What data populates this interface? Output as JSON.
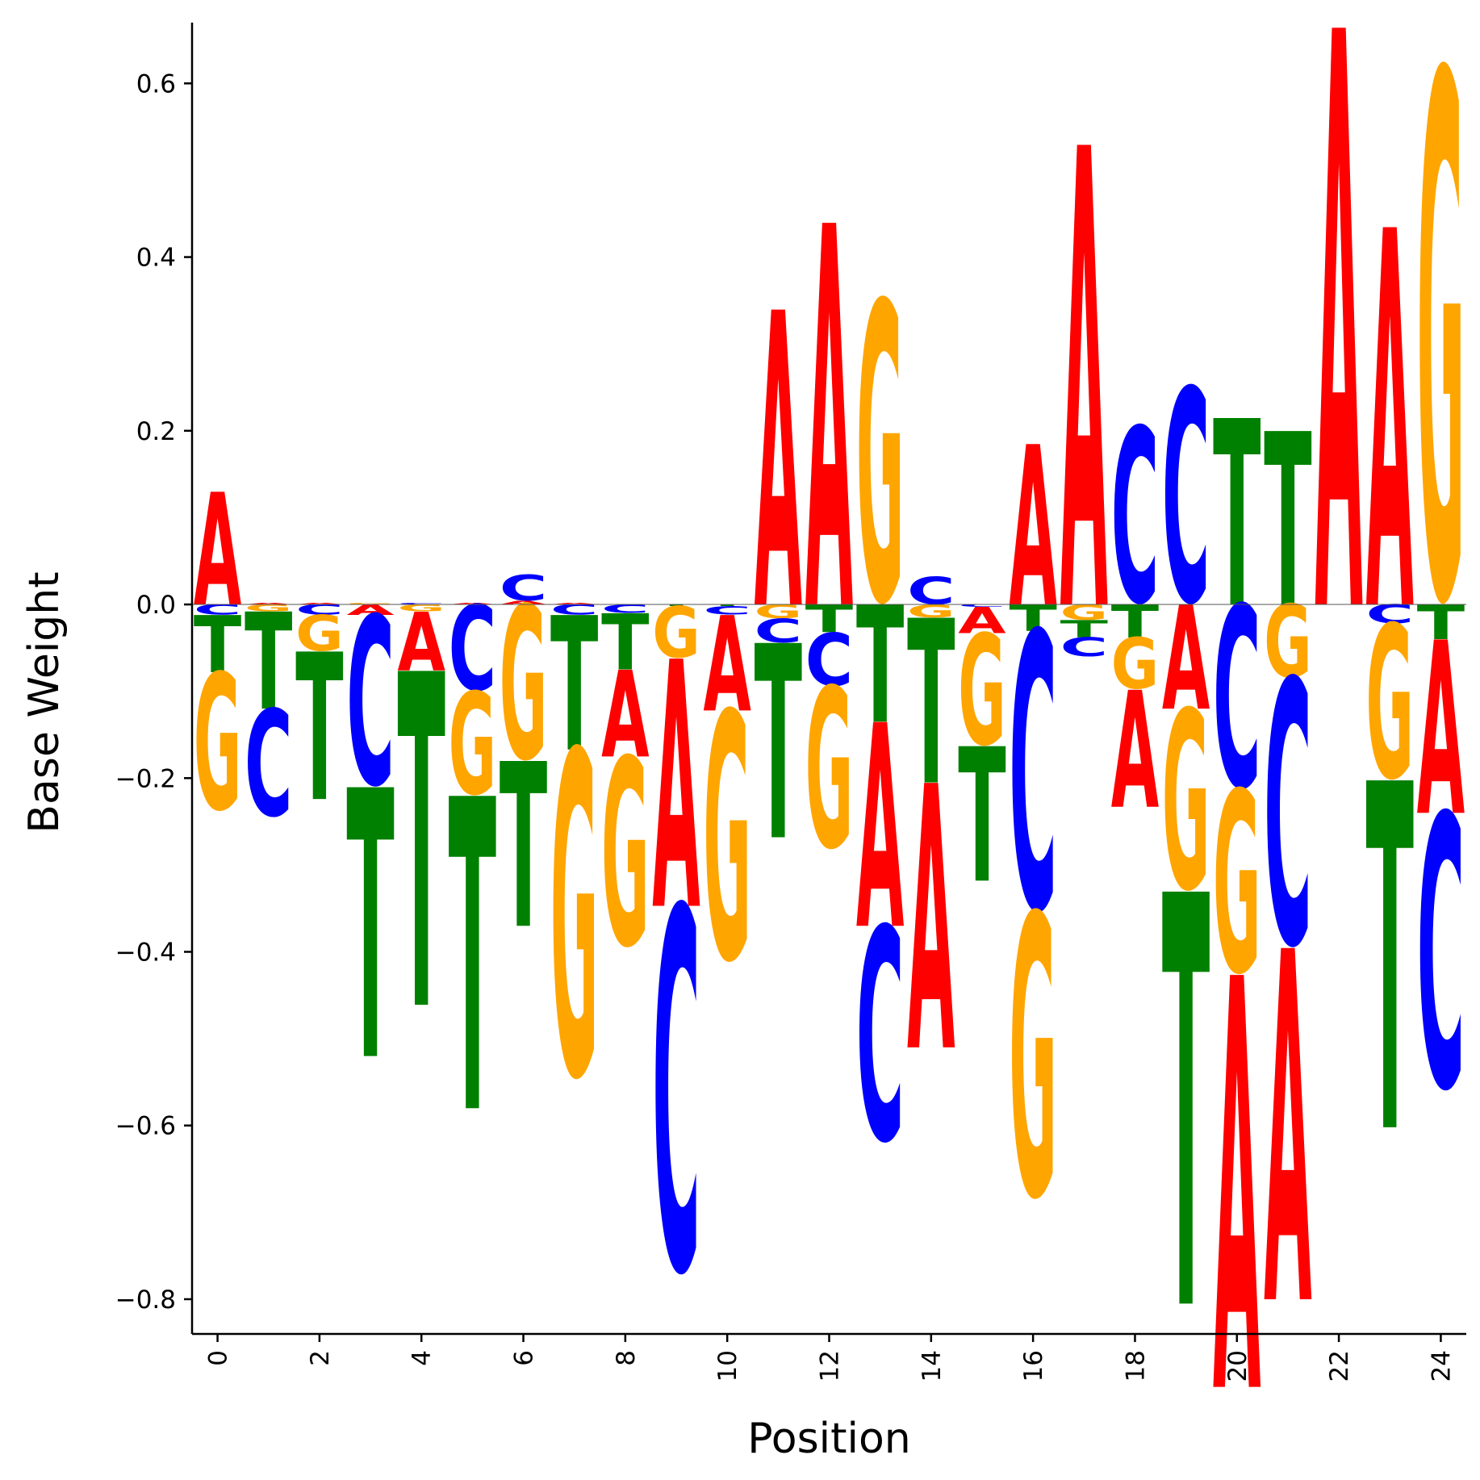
{
  "chart_data": {
    "type": "sequence-logo",
    "title": "",
    "xlabel": "Position",
    "ylabel": "Base Weight",
    "xlim": [
      -0.5,
      24.5
    ],
    "ylim": [
      -0.84,
      0.67
    ],
    "x_ticks": [
      0,
      2,
      4,
      6,
      8,
      10,
      12,
      14,
      16,
      18,
      20,
      22,
      24
    ],
    "x_tick_labels": [
      "0",
      "2",
      "4",
      "6",
      "8",
      "10",
      "12",
      "14",
      "16",
      "18",
      "20",
      "22",
      "24"
    ],
    "y_ticks": [
      -0.8,
      -0.6,
      -0.4,
      -0.2,
      0.0,
      0.2,
      0.4,
      0.6
    ],
    "y_tick_labels": [
      "−0.8",
      "−0.6",
      "−0.4",
      "−0.2",
      "0.0",
      "0.2",
      "0.4",
      "0.6"
    ],
    "base_colors": {
      "A": "#ff0000",
      "C": "#0000ff",
      "G": "#ffa500",
      "T": "#008000"
    },
    "grid": false,
    "positions": [
      {
        "pos": 0,
        "A": 0.13,
        "C": -0.012,
        "G": -0.16,
        "T": -0.066
      },
      {
        "pos": 1,
        "A": 0.002,
        "C": -0.125,
        "G": -0.008,
        "T": -0.112
      },
      {
        "pos": 2,
        "A": 0.002,
        "C": -0.012,
        "G": -0.042,
        "T": -0.17
      },
      {
        "pos": 3,
        "A": -0.012,
        "C": -0.198,
        "G": 0.002,
        "T": -0.31
      },
      {
        "pos": 4,
        "A": -0.068,
        "C": 0.002,
        "G": -0.008,
        "T": -0.385
      },
      {
        "pos": 5,
        "A": 0.002,
        "C": -0.1,
        "G": -0.12,
        "T": -0.36
      },
      {
        "pos": 6,
        "A": 0.004,
        "C": 0.03,
        "G": -0.18,
        "T": -0.19
      },
      {
        "pos": 7,
        "A": 0.002,
        "C": -0.012,
        "G": -0.38,
        "T": -0.155
      },
      {
        "pos": 8,
        "A": -0.1,
        "C": -0.01,
        "G": -0.22,
        "T": -0.065
      },
      {
        "pos": 9,
        "A": -0.285,
        "C": -0.425,
        "G": -0.06,
        "T": -0.002
      },
      {
        "pos": 10,
        "A": -0.11,
        "C": -0.01,
        "G": -0.29,
        "T": -0.002
      },
      {
        "pos": 11,
        "A": 0.34,
        "C": -0.028,
        "G": -0.016,
        "T": -0.224
      },
      {
        "pos": 12,
        "A": 0.44,
        "C": -0.062,
        "G": -0.188,
        "T": -0.032
      },
      {
        "pos": 13,
        "A": -0.235,
        "C": -0.25,
        "G": 0.35,
        "T": -0.135
      },
      {
        "pos": 14,
        "A": -0.305,
        "C": 0.032,
        "G": -0.015,
        "T": -0.19
      },
      {
        "pos": 15,
        "A": -0.03,
        "C": -0.003,
        "G": -0.13,
        "T": -0.155
      },
      {
        "pos": 16,
        "A": 0.185,
        "C": -0.325,
        "G": -0.33,
        "T": -0.03
      },
      {
        "pos": 17,
        "A": 0.53,
        "C": -0.022,
        "G": -0.018,
        "T": -0.02
      },
      {
        "pos": 18,
        "A": -0.135,
        "C": 0.205,
        "G": -0.06,
        "T": -0.038
      },
      {
        "pos": 19,
        "A": -0.12,
        "C": 0.25,
        "G": -0.21,
        "T": -0.475
      },
      {
        "pos": 20,
        "A": -0.475,
        "C": -0.213,
        "G": -0.213,
        "T": 0.215
      },
      {
        "pos": 21,
        "A": -0.405,
        "C": -0.31,
        "G": -0.085,
        "T": 0.2
      },
      {
        "pos": 22,
        "A": 0.665,
        "C": 0.0,
        "G": 0.0,
        "T": 0.0
      },
      {
        "pos": 23,
        "A": 0.435,
        "C": -0.022,
        "G": -0.18,
        "T": -0.4
      },
      {
        "pos": 24,
        "A": -0.2,
        "C": -0.32,
        "G": 0.615,
        "T": -0.04
      }
    ]
  }
}
